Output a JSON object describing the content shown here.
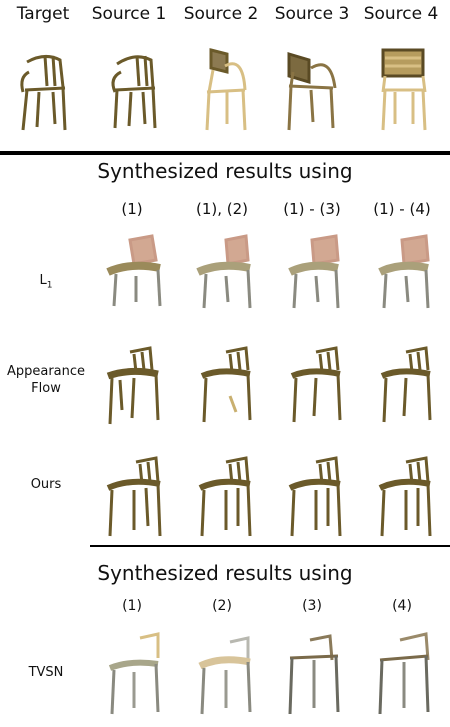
{
  "header": {
    "target": "Target",
    "source1": "Source 1",
    "source2": "Source 2",
    "source3": "Source 3",
    "source4": "Source 4"
  },
  "section1": {
    "title": "Synthesized results using",
    "columns": [
      "(1)",
      "(1), (2)",
      "(1) - (3)",
      "(1) - (4)"
    ],
    "rows": [
      {
        "label_main": "L",
        "label_sub": "1"
      },
      {
        "label_line1": "Appearance",
        "label_line2": "Flow"
      },
      {
        "label_main": "Ours"
      }
    ]
  },
  "section2": {
    "title": "Synthesized results using",
    "columns": [
      "(1)",
      "(2)",
      "(3)",
      "(4)"
    ],
    "row_label": "TVSN"
  },
  "colors": {
    "chair_dark": "#6b5a2a",
    "chair_mid": "#9a8444",
    "chair_light": "#d8bf84",
    "chair_pink": "#c99a86",
    "chair_grey": "#8a8a80"
  }
}
